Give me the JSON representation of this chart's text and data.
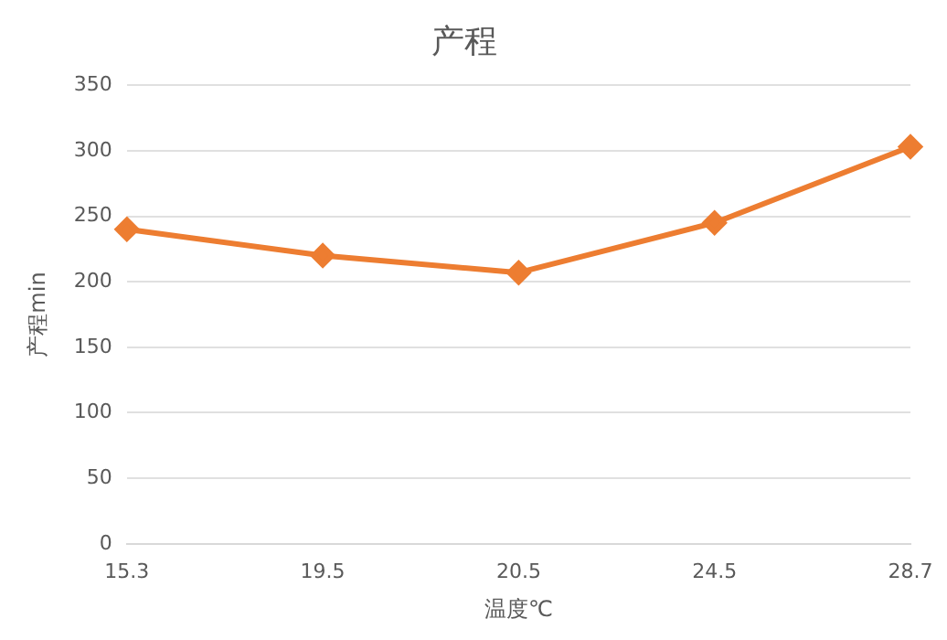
{
  "chart_data": {
    "type": "line",
    "title": "产程",
    "xlabel": "温度℃",
    "ylabel": "产程min",
    "categories": [
      "15.3",
      "19.5",
      "20.5",
      "24.5",
      "28.7"
    ],
    "series": [
      {
        "color": "#ed7d31",
        "values": [
          240,
          220,
          207,
          245,
          303
        ]
      }
    ],
    "ylim": [
      0,
      350
    ],
    "yticks": [
      0,
      50,
      100,
      150,
      200,
      250,
      300,
      350
    ],
    "grid": "y",
    "legend": false,
    "marker": "diamond",
    "line_style": "solid"
  }
}
